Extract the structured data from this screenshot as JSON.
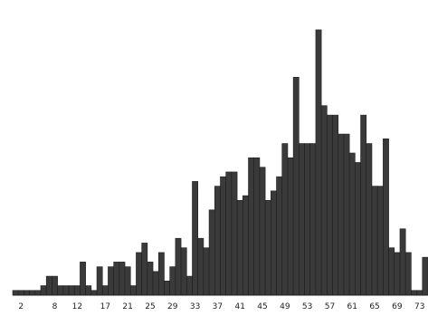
{
  "chart_data": {
    "type": "bar",
    "title": "",
    "xlabel": "",
    "ylabel": "",
    "grid": false,
    "legend": "none",
    "bar_color": "#3a3a3a",
    "x": [
      1,
      2,
      3,
      4,
      5,
      6,
      7,
      8,
      9,
      10,
      11,
      12,
      13,
      14,
      15,
      16,
      17,
      18,
      19,
      20,
      21,
      22,
      23,
      24,
      25,
      26,
      27,
      28,
      29,
      30,
      31,
      32,
      33,
      34,
      35,
      36,
      37,
      38,
      39,
      40,
      41,
      42,
      43,
      44,
      45,
      46,
      47,
      48,
      49,
      50,
      51,
      52,
      53,
      54,
      55,
      56,
      57,
      58,
      59,
      60,
      61,
      62,
      63,
      64,
      65,
      66,
      67,
      68,
      69,
      70,
      71,
      72,
      73,
      74
    ],
    "values": [
      1,
      1,
      1,
      1,
      1,
      2,
      4,
      4,
      2,
      2,
      2,
      2,
      7,
      2,
      1,
      6,
      2,
      6,
      7,
      7,
      6,
      2,
      9,
      11,
      7,
      5,
      9,
      3,
      6,
      12,
      10,
      4,
      24,
      12,
      10,
      18,
      23,
      25,
      26,
      26,
      20,
      21,
      29,
      29,
      27,
      20,
      22,
      25,
      32,
      29,
      46,
      32,
      32,
      32,
      56,
      40,
      38,
      38,
      34,
      34,
      30,
      28,
      38,
      32,
      23,
      23,
      33,
      10,
      9,
      14,
      9,
      1,
      1,
      8
    ],
    "ylim": [
      0,
      60
    ],
    "xticks": [
      2,
      8,
      12,
      17,
      21,
      25,
      29,
      33,
      37,
      41,
      45,
      49,
      53,
      57,
      61,
      65,
      69,
      73
    ],
    "xtick_labels": [
      "2",
      "8",
      "12",
      "17",
      "21",
      "25",
      "29",
      "33",
      "37",
      "41",
      "45",
      "49",
      "53",
      "57",
      "61",
      "65",
      "69",
      "73"
    ]
  }
}
